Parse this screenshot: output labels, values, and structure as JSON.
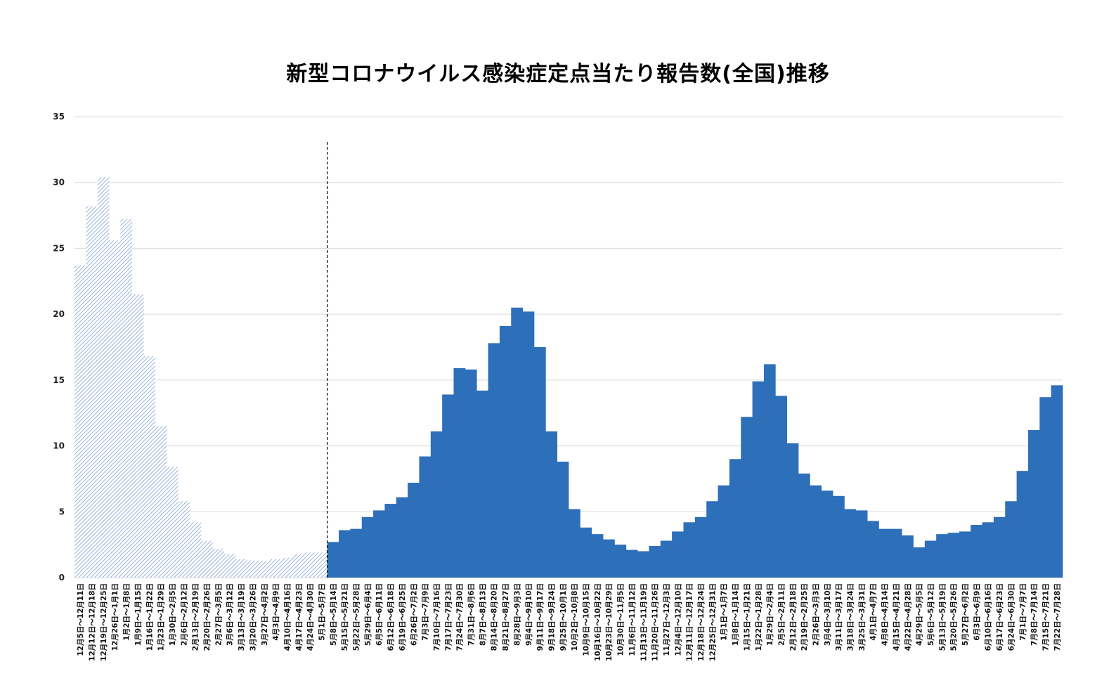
{
  "chart_data": {
    "type": "bar",
    "title": "新型コロナウイルス感染症定点当たり報告数(全国)推移",
    "xlabel": "",
    "ylabel": "",
    "ylim": [
      0,
      35
    ],
    "yticks": [
      0,
      5,
      10,
      15,
      20,
      25,
      30,
      35
    ],
    "grid": true,
    "legend": "none",
    "divider_after_category": "5月1日～5月7日",
    "colors": {
      "hatched": "#8aa9d4",
      "solid": "#2e6fba",
      "grid": "#d9d9d9",
      "divider": "#000000"
    },
    "series": [
      {
        "style": "hatched",
        "categories": [
          "12月5日～12月11日",
          "12月12日～12月18日",
          "12月19日～12月25日",
          "12月26日～1月1日",
          "1月2日～1月8日",
          "1月9日～1月15日",
          "1月16日～1月22日",
          "1月23日～1月29日",
          "1月30日～2月5日",
          "2月6日～2月12日",
          "2月13日～2月19日",
          "2月20日～2月26日",
          "2月27日～3月5日",
          "3月6日～3月12日",
          "3月13日～3月19日",
          "3月20日～3月26日",
          "3月27日～4月2日",
          "4月3日～4月9日",
          "4月10日～4月16日",
          "4月17日～4月23日",
          "4月24日～4月30日",
          "5月1日～5月7日"
        ],
        "values": [
          23.7,
          28.2,
          30.4,
          25.6,
          27.2,
          21.5,
          16.8,
          11.5,
          8.4,
          5.8,
          4.2,
          2.8,
          2.2,
          1.8,
          1.4,
          1.3,
          1.25,
          1.4,
          1.5,
          1.8,
          1.9,
          1.9
        ]
      },
      {
        "style": "solid",
        "categories": [
          "5月8日～5月14日",
          "5月15日～5月21日",
          "5月22日～5月28日",
          "5月29日～6月4日",
          "6月5日～6月11日",
          "6月12日～6月18日",
          "6月19日～6月25日",
          "6月26日～7月2日",
          "7月3日～7月9日",
          "7月10日～7月16日",
          "7月17日～7月23日",
          "7月24日～7月30日",
          "7月31日～8月6日",
          "8月7日～8月13日",
          "8月14日～8月20日",
          "8月21日～8月27日",
          "8月28日～9月3日",
          "9月4日～9月10日",
          "9月11日～9月17日",
          "9月18日～9月24日",
          "9月25日～10月1日",
          "10月2日～10月8日",
          "10月9日～10月15日",
          "10月16日～10月22日",
          "10月23日～10月29日",
          "10月30日～11月5日",
          "11月6日～11月12日",
          "11月13日～11月19日",
          "11月20日～11月26日",
          "11月27日～12月3日",
          "12月4日～12月10日",
          "12月11日～12月17日",
          "12月18日～12月24日",
          "12月25日～12月31日",
          "1月1日～1月7日",
          "1月8日～1月14日",
          "1月15日～1月21日",
          "1月22日～1月28日",
          "1月29日～2月4日",
          "2月5日～2月11日",
          "2月12日～2月18日",
          "2月19日～2月25日",
          "2月26日～3月3日",
          "3月4日～3月10日",
          "3月11日～3月17日",
          "3月18日～3月24日",
          "3月25日～3月31日",
          "4月1日～4月7日",
          "4月8日～4月14日",
          "4月15日～4月21日",
          "4月22日～4月28日",
          "4月29日～5月5日",
          "5月6日～5月12日",
          "5月13日～5月19日",
          "5月20日～5月26日",
          "5月27日～6月2日",
          "6月3日～6月9日",
          "6月10日～6月16日",
          "6月17日～6月23日",
          "6月24日～6月30日",
          "7月1日～7月7日",
          "7月8日～7月14日",
          "7月15日～7月21日",
          "7月22日～7月28日"
        ],
        "values": [
          2.7,
          3.6,
          3.7,
          4.6,
          5.1,
          5.6,
          6.1,
          7.2,
          9.2,
          11.1,
          13.9,
          15.9,
          15.8,
          14.2,
          17.8,
          19.1,
          20.5,
          20.2,
          17.5,
          11.1,
          8.8,
          5.2,
          3.8,
          3.3,
          2.9,
          2.5,
          2.1,
          2.0,
          2.4,
          2.8,
          3.5,
          4.2,
          4.6,
          5.8,
          7.0,
          9.0,
          12.2,
          14.9,
          16.2,
          13.8,
          10.2,
          7.9,
          7.0,
          6.6,
          6.2,
          5.2,
          5.1,
          4.3,
          3.7,
          3.7,
          3.2,
          2.3,
          2.8,
          3.3,
          3.4,
          3.5,
          4.0,
          4.2,
          4.6,
          5.8,
          8.1,
          11.2,
          13.7,
          14.6
        ]
      }
    ]
  }
}
